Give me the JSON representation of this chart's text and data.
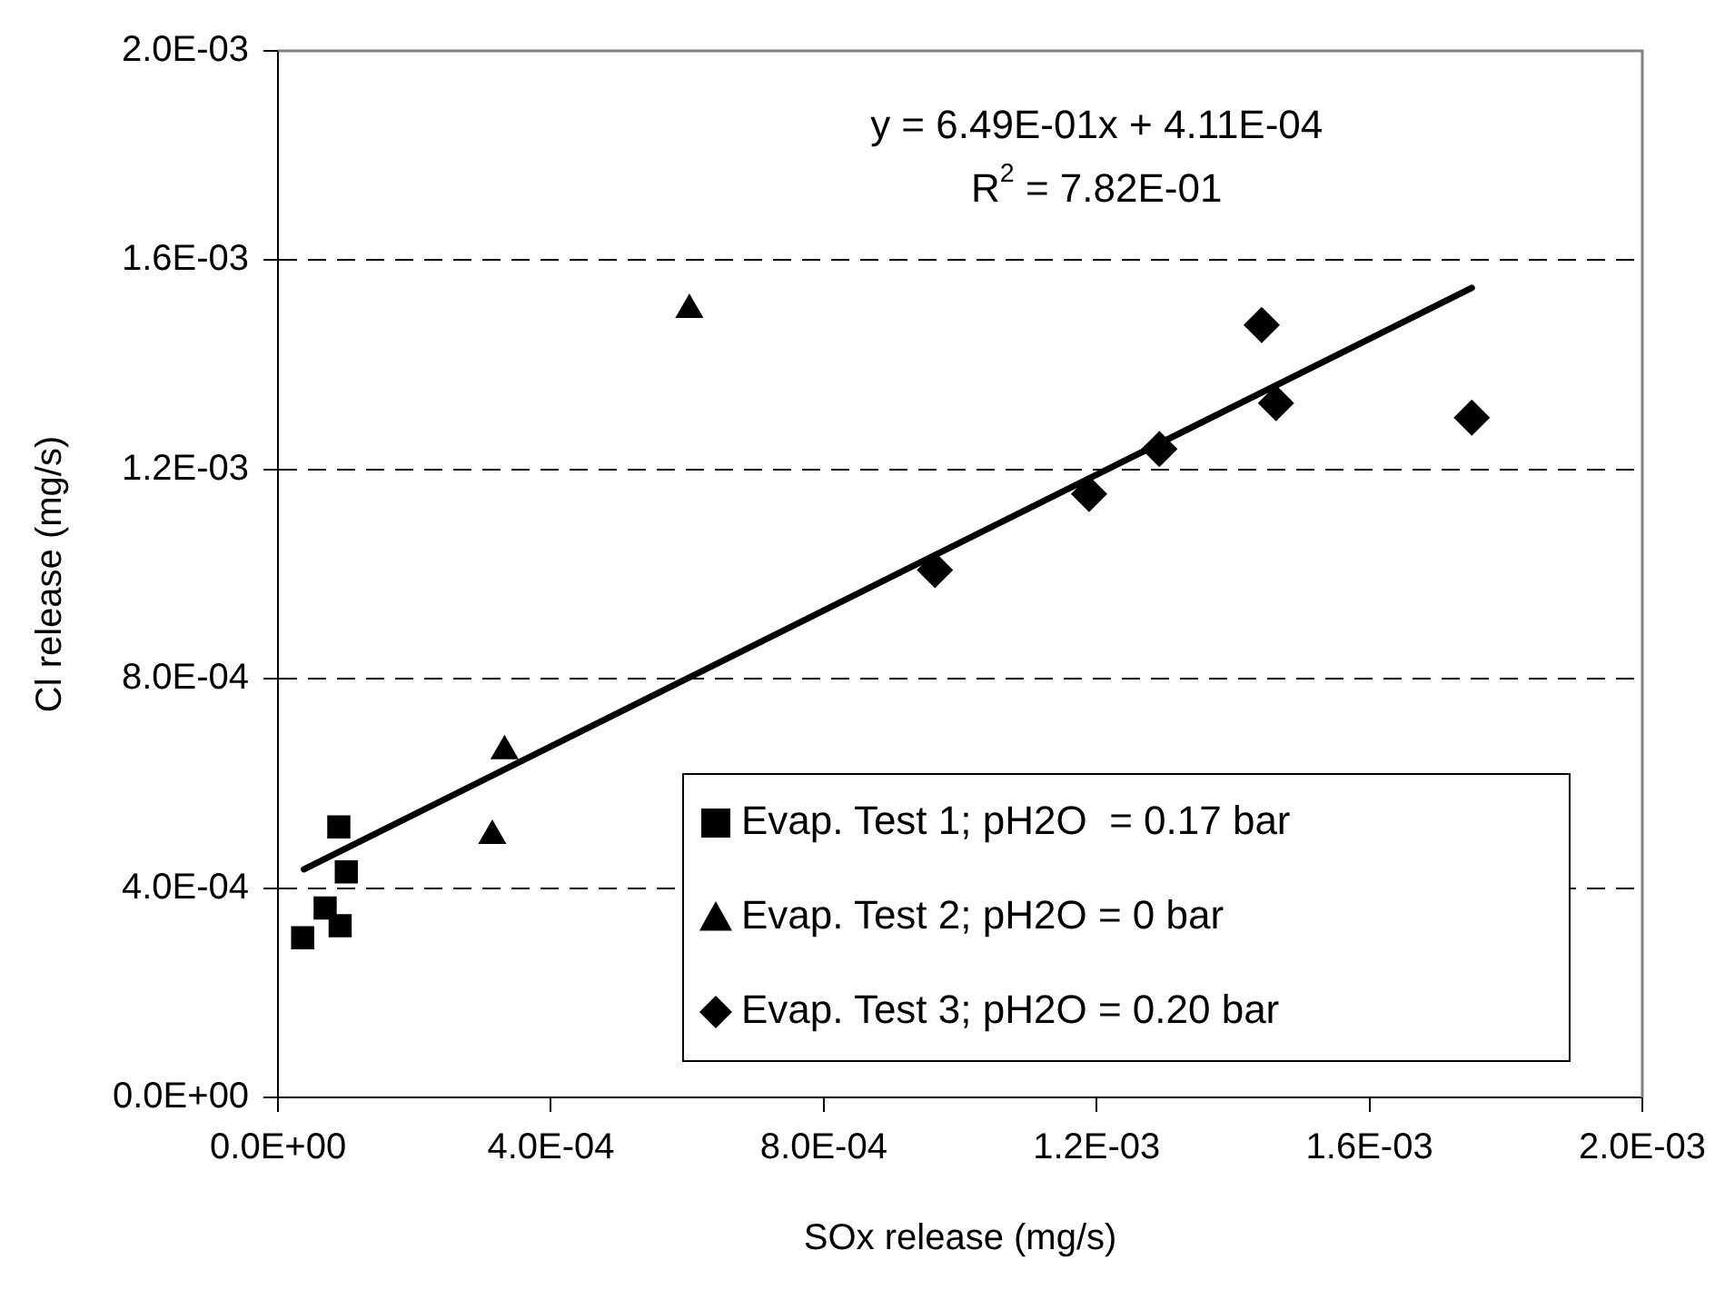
{
  "chart_data": {
    "type": "scatter",
    "xlabel": "SOx release (mg/s)",
    "ylabel": "Cl release (mg/s)",
    "xlim": [
      0,
      0.002
    ],
    "ylim": [
      0,
      0.002
    ],
    "xticks": [
      {
        "value": 0,
        "label": "0.0E+00"
      },
      {
        "value": 0.0004,
        "label": "4.0E-04"
      },
      {
        "value": 0.0008,
        "label": "8.0E-04"
      },
      {
        "value": 0.0012,
        "label": "1.2E-03"
      },
      {
        "value": 0.0016,
        "label": "1.6E-03"
      },
      {
        "value": 0.002,
        "label": "2.0E-03"
      }
    ],
    "yticks": [
      {
        "value": 0,
        "label": "0.0E+00"
      },
      {
        "value": 0.0004,
        "label": "4.0E-04"
      },
      {
        "value": 0.0008,
        "label": "8.0E-04"
      },
      {
        "value": 0.0012,
        "label": "1.2E-03"
      },
      {
        "value": 0.0016,
        "label": "1.6E-03"
      },
      {
        "value": 0.002,
        "label": "2.0E-03"
      }
    ],
    "grid": "y",
    "legend": "bottom right",
    "annotations": [
      "y = 6.49E-01x + 4.11E-04",
      "R$^{2}$ = 7.82E-01"
    ],
    "series": [
      {
        "name": "Evap. Test 1; pH2O  = 0.17 bar",
        "color": "#000000",
        "marker": "square",
        "x": [
          8.9e-05,
          0.0001,
          6.9e-05,
          9.1e-05,
          3.6e-05
        ],
        "values": [
          0.000517,
          0.000431,
          0.000362,
          0.000328,
          0.000305
        ]
      },
      {
        "name": "Evap. Test 2; pH2O = 0 bar",
        "color": "#000000",
        "marker": "triangle",
        "x": [
          0.000332,
          0.000314,
          0.000603
        ],
        "values": [
          0.000662,
          0.0005,
          0.001505
        ]
      },
      {
        "name": "Evap. Test 3; pH2O = 0.20 bar",
        "color": "#000000",
        "marker": "diamond",
        "x": [
          0.000963,
          0.001189,
          0.001292,
          0.001442,
          0.001463,
          0.00175
        ],
        "values": [
          0.001008,
          0.001153,
          0.001239,
          0.001476,
          0.001327,
          0.001299
        ]
      },
      {
        "type": "line",
        "color": "#000000",
        "marker": "none",
        "line_style": "solid",
        "x": [
          3.8e-05,
          0.00175
        ],
        "values": [
          0.000436,
          0.001547
        ]
      }
    ]
  }
}
